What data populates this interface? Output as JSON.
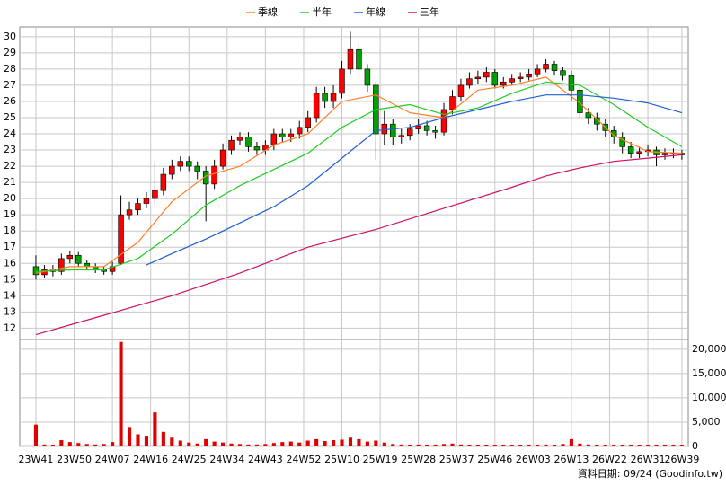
{
  "chart_data": [
    {
      "type": "candlestick",
      "legend": "top",
      "grid": true,
      "up_color": "#ff0000",
      "down_color": "#00a000",
      "x": [
        0,
        2,
        4,
        6,
        8,
        10,
        12,
        14,
        16,
        18,
        20,
        22,
        24,
        26,
        28,
        30,
        32,
        34,
        36,
        38,
        40,
        42,
        44,
        46,
        48,
        50,
        52,
        54,
        56,
        58,
        60,
        62,
        64,
        66,
        68,
        70,
        72,
        74,
        76,
        78,
        80,
        82,
        84,
        86,
        88,
        90,
        92,
        94,
        96,
        98,
        100,
        102,
        104,
        106,
        108,
        110,
        112,
        114,
        116,
        118,
        120,
        122,
        124,
        126,
        128,
        130,
        132,
        134,
        136,
        138,
        140,
        142,
        144,
        146,
        148,
        150,
        152
      ],
      "open": [
        15.8,
        15.3,
        15.6,
        15.5,
        16.3,
        16.5,
        16.0,
        15.8,
        15.6,
        15.5,
        16.0,
        19.0,
        19.3,
        19.7,
        20.0,
        20.5,
        21.5,
        22.0,
        22.3,
        22.0,
        21.7,
        20.9,
        22.0,
        23.0,
        23.6,
        23.8,
        23.2,
        23.0,
        23.3,
        24.0,
        23.8,
        24.0,
        24.4,
        25.0,
        26.5,
        26.0,
        26.5,
        28.0,
        29.2,
        28.0,
        27.0,
        24.0,
        24.6,
        23.8,
        23.9,
        24.3,
        24.5,
        24.2,
        24.1,
        25.5,
        26.3,
        27.0,
        27.4,
        27.5,
        27.8,
        27.0,
        27.2,
        27.4,
        27.5,
        27.7,
        28.0,
        28.3,
        27.9,
        27.6,
        26.7,
        25.3,
        25.0,
        24.6,
        24.2,
        23.8,
        23.2,
        22.8,
        22.9,
        23.0,
        22.7,
        22.8,
        22.8
      ],
      "high": [
        16.5,
        15.9,
        15.9,
        16.6,
        16.8,
        16.7,
        16.2,
        16.0,
        15.8,
        16.1,
        20.2,
        19.8,
        20.0,
        20.4,
        22.3,
        21.9,
        22.4,
        22.6,
        22.6,
        22.3,
        22.0,
        22.4,
        23.4,
        23.9,
        24.1,
        24.1,
        23.5,
        23.6,
        24.3,
        24.3,
        24.3,
        24.8,
        25.4,
        26.9,
        26.9,
        27.0,
        28.5,
        30.3,
        29.6,
        28.3,
        27.2,
        25.4,
        24.9,
        24.3,
        24.6,
        24.9,
        24.8,
        24.5,
        25.9,
        26.7,
        27.4,
        27.8,
        27.9,
        28.1,
        28.0,
        27.5,
        27.7,
        27.8,
        28.0,
        28.3,
        28.6,
        28.5,
        28.1,
        27.9,
        26.9,
        25.6,
        25.3,
        24.9,
        24.5,
        24.1,
        23.5,
        23.2,
        23.3,
        23.2,
        23.1,
        23.1,
        23.0
      ],
      "low": [
        15.0,
        15.1,
        15.2,
        15.3,
        16.0,
        15.8,
        15.6,
        15.4,
        15.3,
        15.3,
        15.9,
        18.7,
        19.0,
        19.4,
        19.6,
        20.2,
        21.2,
        21.7,
        21.7,
        21.2,
        18.6,
        20.6,
        21.8,
        22.7,
        23.3,
        22.9,
        22.7,
        22.7,
        23.0,
        23.5,
        23.5,
        23.7,
        24.1,
        24.7,
        25.6,
        25.6,
        26.2,
        27.7,
        27.6,
        26.6,
        22.4,
        23.3,
        23.3,
        23.4,
        23.6,
        24.0,
        23.9,
        23.7,
        23.9,
        25.2,
        26.0,
        26.8,
        27.1,
        27.2,
        26.8,
        26.8,
        27.0,
        27.2,
        27.3,
        27.5,
        27.8,
        27.6,
        27.3,
        26.0,
        25.0,
        24.6,
        24.2,
        23.8,
        23.4,
        22.8,
        22.5,
        22.5,
        22.6,
        22.0,
        22.4,
        22.5,
        22.4
      ],
      "close": [
        15.3,
        15.6,
        15.5,
        16.3,
        16.5,
        16.0,
        15.8,
        15.6,
        15.5,
        15.8,
        19.0,
        19.3,
        19.7,
        20.0,
        20.5,
        21.5,
        22.0,
        22.3,
        22.0,
        21.7,
        20.9,
        22.0,
        23.0,
        23.6,
        23.8,
        23.2,
        23.0,
        23.3,
        24.0,
        23.8,
        24.0,
        24.4,
        25.0,
        26.5,
        26.0,
        26.5,
        28.0,
        29.2,
        28.0,
        27.0,
        24.0,
        24.6,
        23.8,
        23.9,
        24.3,
        24.5,
        24.2,
        24.1,
        25.5,
        26.3,
        27.0,
        27.4,
        27.5,
        27.8,
        27.0,
        27.2,
        27.4,
        27.5,
        27.7,
        28.0,
        28.3,
        27.9,
        27.6,
        26.7,
        25.3,
        25.0,
        24.6,
        24.2,
        23.8,
        23.2,
        22.8,
        22.9,
        23.0,
        22.7,
        22.8,
        22.8,
        22.7
      ],
      "series": [
        {
          "name": "季線",
          "color": "#ff7f27",
          "x": [
            0,
            8,
            16,
            24,
            32,
            40,
            48,
            56,
            64,
            72,
            80,
            88,
            96,
            104,
            112,
            120,
            128,
            136,
            144,
            152
          ],
          "values": [
            15.4,
            15.8,
            15.8,
            17.3,
            19.8,
            21.4,
            22.0,
            23.3,
            24.0,
            26.0,
            26.4,
            25.3,
            25.0,
            26.7,
            27.0,
            27.5,
            25.9,
            23.9,
            22.9,
            22.8
          ]
        },
        {
          "name": "半年",
          "color": "#22cc22",
          "x": [
            0,
            8,
            16,
            24,
            32,
            40,
            48,
            56,
            64,
            72,
            80,
            88,
            96,
            104,
            112,
            120,
            128,
            136,
            144,
            152
          ],
          "values": [
            15.5,
            15.6,
            15.6,
            16.3,
            17.8,
            19.6,
            20.8,
            21.8,
            22.8,
            24.4,
            25.5,
            25.8,
            25.2,
            25.6,
            26.5,
            27.2,
            27.0,
            25.8,
            24.4,
            23.2
          ]
        },
        {
          "name": "年線",
          "color": "#1f5fd0",
          "x": [
            26,
            32,
            40,
            48,
            56,
            64,
            72,
            80,
            88,
            96,
            104,
            112,
            120,
            128,
            136,
            144,
            152
          ],
          "values": [
            15.9,
            16.6,
            17.5,
            18.5,
            19.5,
            20.8,
            22.5,
            24.2,
            24.4,
            25.0,
            25.5,
            26.0,
            26.4,
            26.4,
            26.2,
            25.9,
            25.3
          ]
        },
        {
          "name": "三年",
          "color": "#cc1166",
          "x": [
            0,
            16,
            32,
            48,
            64,
            80,
            96,
            112,
            120,
            128,
            136,
            144,
            152
          ],
          "values": [
            11.6,
            12.8,
            14.0,
            15.4,
            17.0,
            18.1,
            19.4,
            20.7,
            21.4,
            21.9,
            22.3,
            22.5,
            22.7
          ]
        }
      ],
      "xlim": [
        -3.8,
        153.5
      ],
      "ylim": [
        11.3,
        30.6
      ],
      "yticks": [
        12,
        13,
        14,
        15,
        16,
        17,
        18,
        19,
        20,
        21,
        22,
        23,
        24,
        25,
        26,
        27,
        28,
        29,
        30
      ]
    },
    {
      "type": "bar",
      "color": "#e00000",
      "grid": true,
      "x": [
        0,
        2,
        4,
        6,
        8,
        10,
        12,
        14,
        16,
        18,
        20,
        22,
        24,
        26,
        28,
        30,
        32,
        34,
        36,
        38,
        40,
        42,
        44,
        46,
        48,
        50,
        52,
        54,
        56,
        58,
        60,
        62,
        64,
        66,
        68,
        70,
        72,
        74,
        76,
        78,
        80,
        82,
        84,
        86,
        88,
        90,
        92,
        94,
        96,
        98,
        100,
        102,
        104,
        106,
        108,
        110,
        112,
        114,
        116,
        118,
        120,
        122,
        124,
        126,
        128,
        130,
        132,
        134,
        136,
        138,
        140,
        142,
        144,
        146,
        148,
        150,
        152
      ],
      "values": [
        4500,
        400,
        300,
        1300,
        900,
        700,
        500,
        400,
        500,
        900,
        21500,
        4000,
        2500,
        2200,
        7000,
        3000,
        1800,
        1200,
        800,
        600,
        1500,
        1000,
        800,
        600,
        500,
        400,
        400,
        500,
        700,
        900,
        1000,
        800,
        1200,
        1500,
        1100,
        1300,
        1400,
        1800,
        1500,
        1000,
        1200,
        800,
        500,
        400,
        300,
        400,
        300,
        300,
        500,
        600,
        400,
        300,
        300,
        300,
        200,
        200,
        300,
        200,
        200,
        300,
        400,
        300,
        500,
        1500,
        600,
        400,
        300,
        300,
        200,
        200,
        200,
        200,
        200,
        300,
        200,
        200,
        300
      ],
      "xlim": [
        -3.8,
        153.5
      ],
      "ylim": [
        0,
        22000
      ],
      "yticks": [
        0,
        {
          "value": 5000,
          "label": "5,000"
        },
        {
          "value": 10000,
          "label": "10,000"
        },
        {
          "value": 15000,
          "label": "15,000"
        },
        {
          "value": 20000,
          "label": "20,000"
        }
      ],
      "xticks": [
        {
          "value": 0,
          "label": "23W41"
        },
        {
          "value": 9,
          "label": "23W50"
        },
        {
          "value": 18,
          "label": "24W07"
        },
        {
          "value": 27,
          "label": "24W16"
        },
        {
          "value": 36,
          "label": "24W25"
        },
        {
          "value": 45,
          "label": "24W34"
        },
        {
          "value": 54,
          "label": "24W43"
        },
        {
          "value": 63,
          "label": "24W52"
        },
        {
          "value": 72,
          "label": "25W10"
        },
        {
          "value": 81,
          "label": "25W19"
        },
        {
          "value": 90,
          "label": "25W28"
        },
        {
          "value": 99,
          "label": "25W37"
        },
        {
          "value": 108,
          "label": "25W46"
        },
        {
          "value": 117,
          "label": "26W03"
        },
        {
          "value": 126,
          "label": "26W13"
        },
        {
          "value": 135,
          "label": "26W22"
        },
        {
          "value": 144,
          "label": "26W31"
        },
        {
          "value": 152,
          "label": "26W39"
        }
      ]
    }
  ],
  "footer": "資料日期: 09/24 (Goodinfo.tw)"
}
